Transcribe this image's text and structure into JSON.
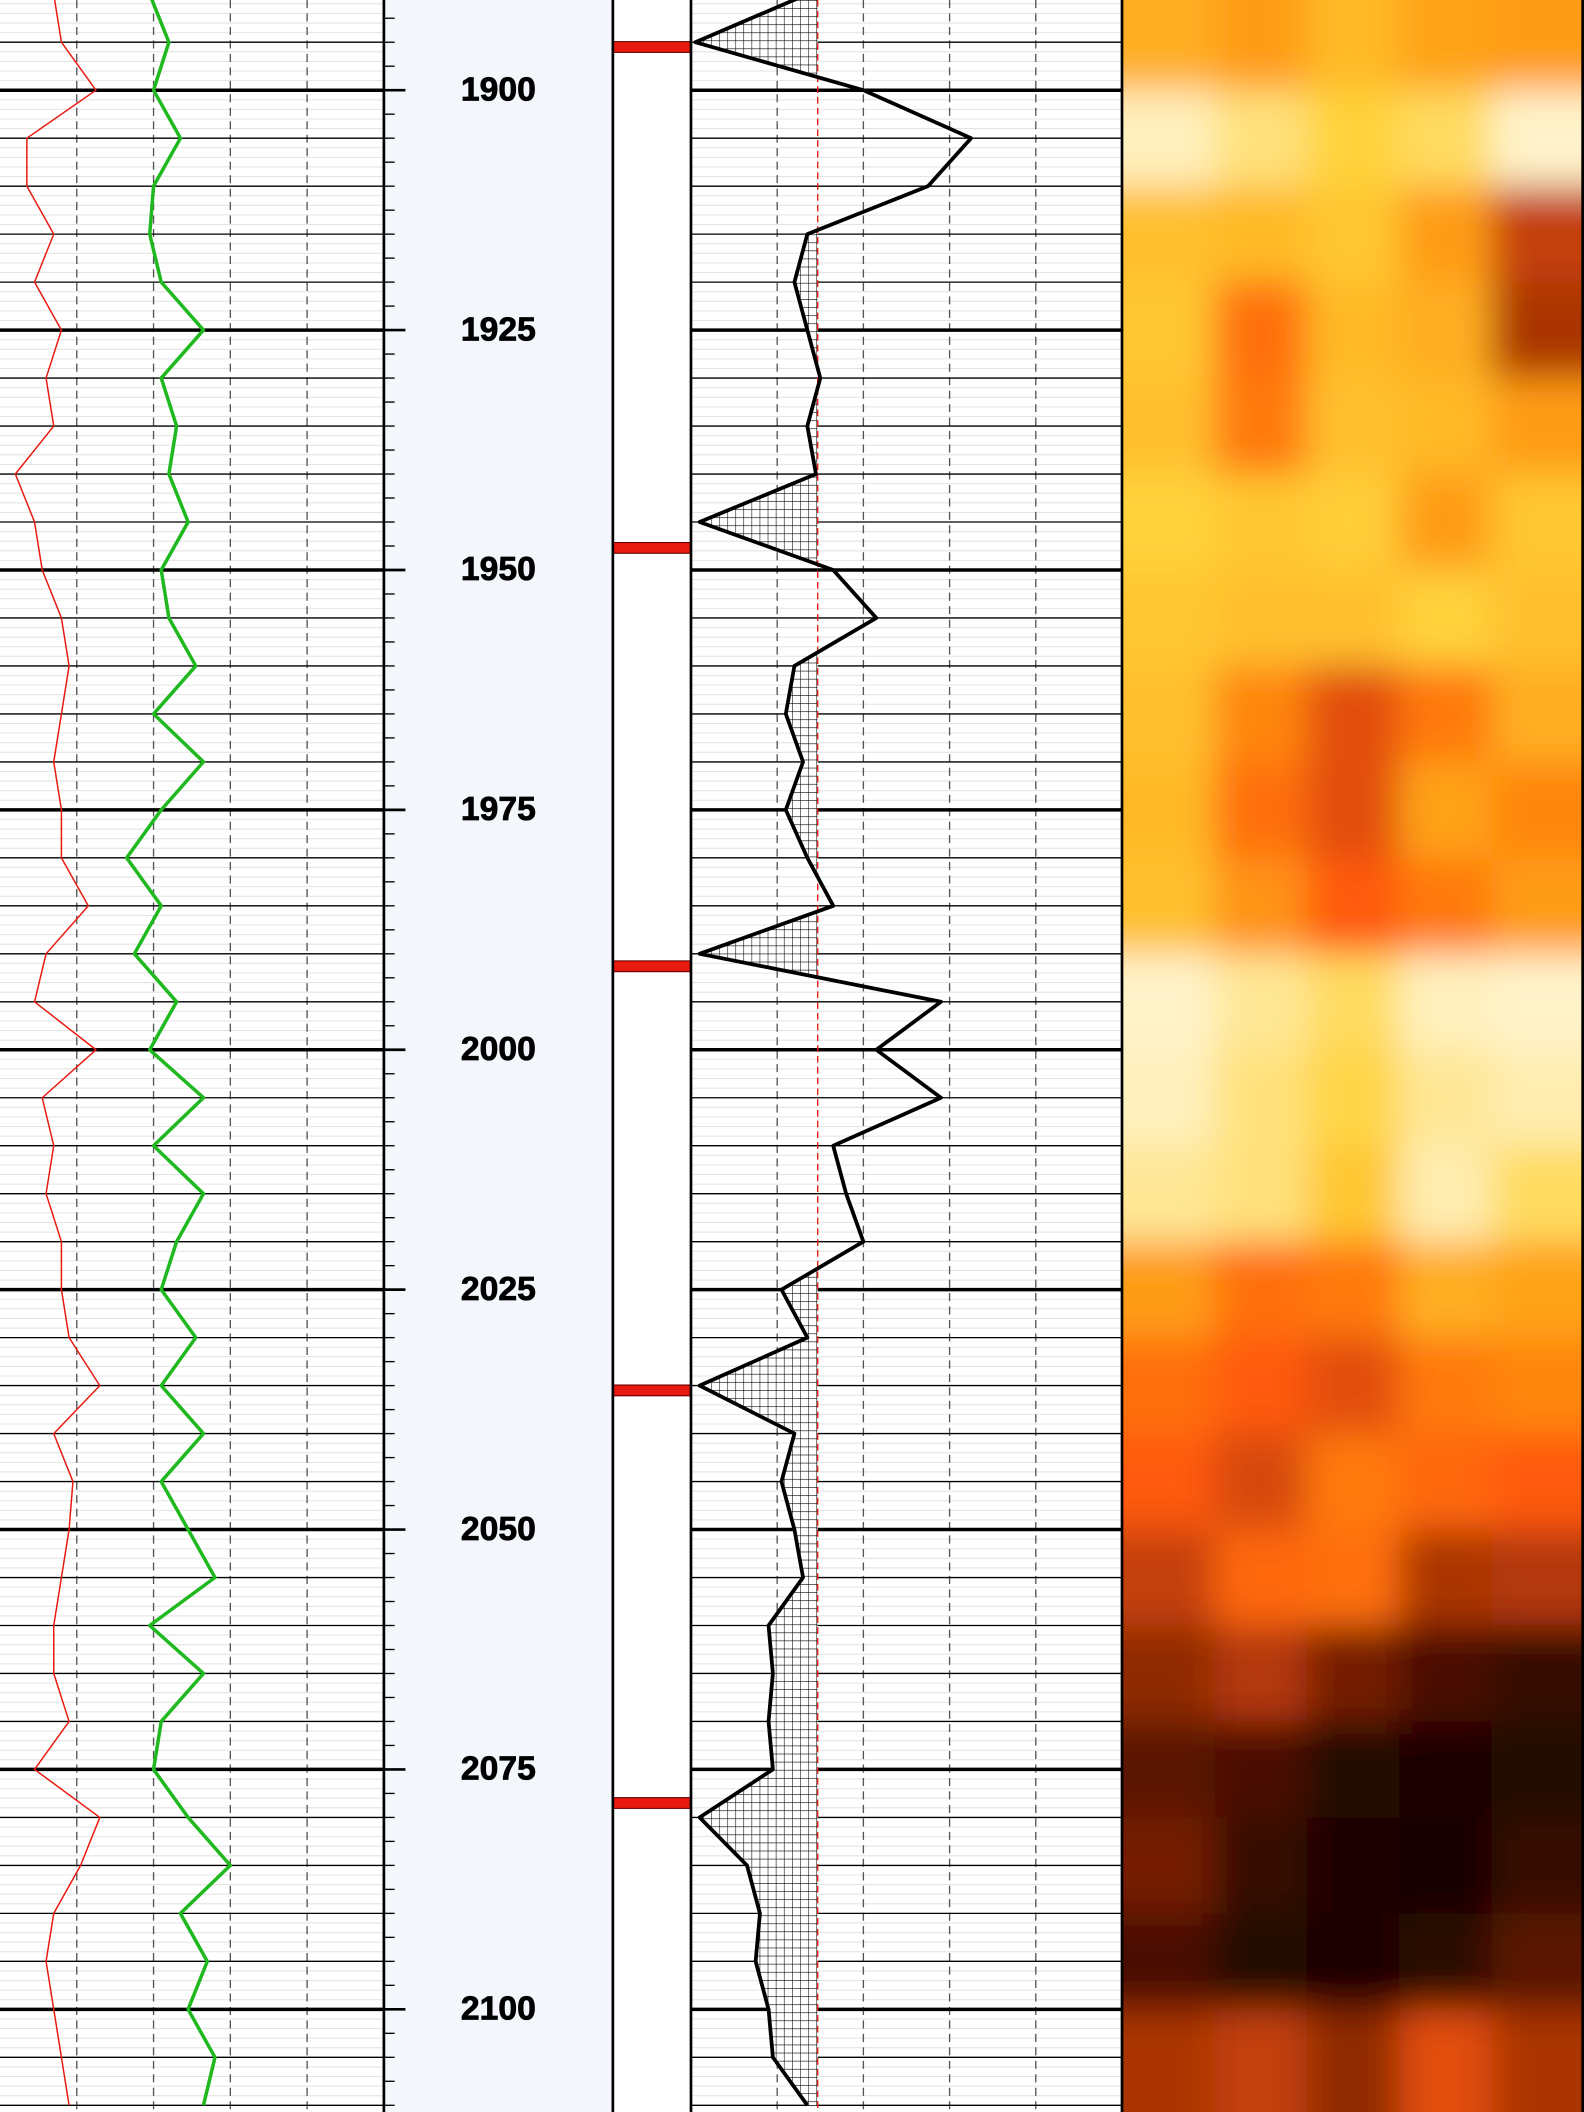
{
  "chart_data": {
    "type": "well-log",
    "ylim": [
      1890.6,
      2110.7
    ],
    "yticks": [
      1900,
      1925,
      1950,
      1975,
      2000,
      2025,
      2050,
      2075,
      2100
    ],
    "minor_tick_step": 5,
    "fine_grid_step": 1,
    "depth_tick_step": 2.5,
    "xlim": [
      0,
      100
    ],
    "xticks": [
      0,
      20,
      40,
      60,
      80,
      100
    ],
    "grid": true,
    "depth": [
      1890,
      1895,
      1900,
      1905,
      1910,
      1915,
      1920,
      1925,
      1930,
      1935,
      1940,
      1945,
      1950,
      1955,
      1960,
      1965,
      1970,
      1975,
      1980,
      1985,
      1990,
      1995,
      2000,
      2005,
      2010,
      2015,
      2020,
      2025,
      2030,
      2035,
      2040,
      2045,
      2050,
      2055,
      2060,
      2065,
      2070,
      2075,
      2080,
      2085,
      2090,
      2095,
      2100,
      2105,
      2110
    ],
    "series": [
      {
        "color": "#e8190f",
        "values": [
          14,
          16,
          25,
          7,
          7,
          14,
          9,
          16,
          12,
          14,
          4,
          9,
          11,
          16,
          18,
          16,
          14,
          16,
          16,
          23,
          12,
          9,
          25,
          11,
          14,
          12,
          16,
          16,
          18,
          26,
          14,
          19,
          18,
          16,
          14,
          14,
          18,
          9,
          26,
          21,
          14,
          12,
          14,
          16,
          18
        ]
      },
      {
        "color": "#1fb81f",
        "values": [
          39,
          44,
          40,
          47,
          40,
          39,
          42,
          53,
          42,
          46,
          44,
          49,
          42,
          44,
          51,
          40,
          53,
          42,
          33,
          42,
          35,
          46,
          39,
          53,
          40,
          53,
          46,
          42,
          51,
          42,
          53,
          42,
          49,
          56,
          39,
          53,
          42,
          40,
          49,
          60,
          47,
          54,
          49,
          56,
          53
        ]
      },
      {
        "color": "#000000",
        "values": [
          27,
          1,
          40,
          65,
          55,
          27,
          24,
          27,
          30,
          27,
          29,
          2,
          33,
          43,
          24,
          22,
          26,
          22,
          27,
          33,
          2,
          58,
          43,
          58,
          33,
          36,
          40,
          21,
          27,
          2,
          24,
          21,
          24,
          26,
          18,
          19,
          18,
          19,
          2,
          13,
          16,
          15,
          18,
          19,
          27
        ],
        "cutoff": 29.4,
        "cutoff_color": "#e8190f"
      }
    ],
    "markers": [
      1895.5,
      1947.7,
      1991.3,
      2035.5,
      2078.5
    ],
    "marker_color": "#e8190f",
    "heat_depths": [
      1890,
      1900,
      1910,
      1920,
      1930,
      1940,
      1950,
      1960,
      1970,
      1980,
      1990,
      2000,
      2010,
      2020,
      2030,
      2040,
      2050,
      2060,
      2070,
      2080,
      2090,
      2100
    ],
    "heat_values": [
      [
        75,
        70,
        78,
        72,
        70
      ],
      [
        95,
        90,
        85,
        88,
        96
      ],
      [
        80,
        78,
        82,
        70,
        45
      ],
      [
        82,
        60,
        78,
        75,
        40
      ],
      [
        80,
        62,
        80,
        78,
        70
      ],
      [
        85,
        82,
        84,
        70,
        82
      ],
      [
        82,
        80,
        80,
        85,
        80
      ],
      [
        80,
        65,
        50,
        62,
        75
      ],
      [
        78,
        60,
        50,
        72,
        65
      ],
      [
        80,
        68,
        55,
        62,
        70
      ],
      [
        96,
        92,
        88,
        95,
        96
      ],
      [
        95,
        90,
        86,
        92,
        94
      ],
      [
        92,
        90,
        82,
        94,
        88
      ],
      [
        70,
        60,
        62,
        75,
        72
      ],
      [
        60,
        55,
        50,
        62,
        65
      ],
      [
        55,
        48,
        62,
        58,
        55
      ],
      [
        45,
        58,
        60,
        40,
        42
      ],
      [
        35,
        42,
        30,
        20,
        15
      ],
      [
        25,
        20,
        10,
        8,
        10
      ],
      [
        30,
        15,
        8,
        5,
        15
      ],
      [
        20,
        10,
        8,
        12,
        25
      ],
      [
        40,
        45,
        35,
        50,
        40
      ]
    ],
    "colormap": [
      [
        0,
        "#000000"
      ],
      [
        25,
        "#5a1400"
      ],
      [
        45,
        "#c44008"
      ],
      [
        55,
        "#ff5a0a"
      ],
      [
        70,
        "#ff9c14"
      ],
      [
        85,
        "#ffd23a"
      ],
      [
        100,
        "#ffffff"
      ]
    ]
  }
}
